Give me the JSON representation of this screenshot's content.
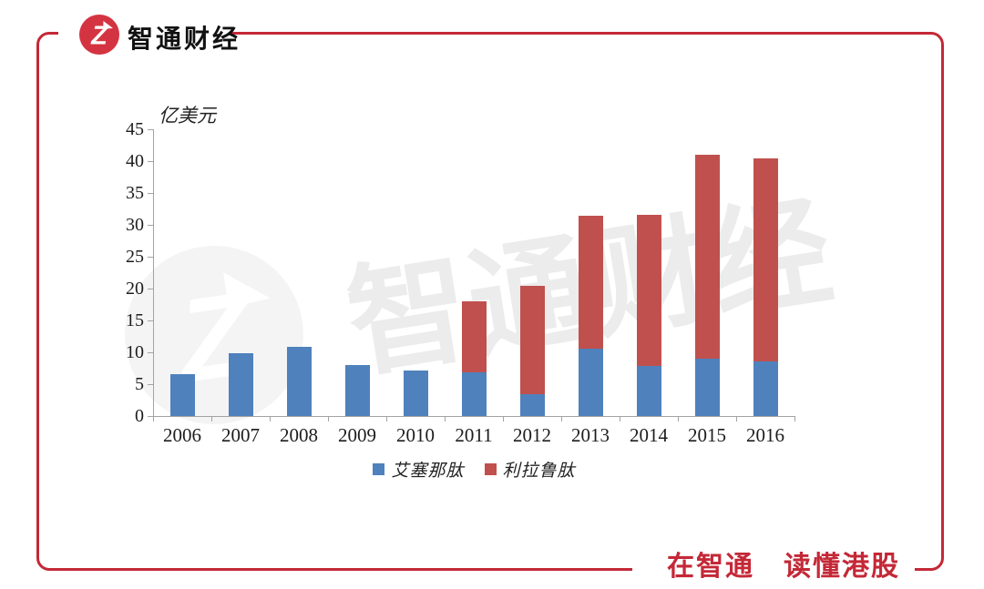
{
  "brand": {
    "name": "智通财经",
    "slogan": "在智通　读懂港股",
    "logo_letter": "Z",
    "logo_color": "#D43441",
    "frame_color": "#C42837"
  },
  "watermark": {
    "text": "智通财经"
  },
  "chart_data": {
    "type": "bar",
    "stacked": true,
    "title": "",
    "unit_label": "亿美元",
    "xlabel": "",
    "ylabel": "亿美元",
    "ylim": [
      0,
      45
    ],
    "ytick_step": 5,
    "grid": false,
    "legend_position": "bottom",
    "categories": [
      "2006",
      "2007",
      "2008",
      "2009",
      "2010",
      "2011",
      "2012",
      "2013",
      "2014",
      "2015",
      "2016"
    ],
    "series": [
      {
        "id": "exenatide",
        "name": "艾塞那肽",
        "color": "#4F81BD",
        "values": [
          6.5,
          9.8,
          10.8,
          8.0,
          7.1,
          6.9,
          3.4,
          10.6,
          7.9,
          9.0,
          8.5
        ]
      },
      {
        "id": "liraglutide",
        "name": "利拉鲁肽",
        "color": "#C0504D",
        "values": [
          0,
          0,
          0,
          0,
          0,
          11.1,
          17.0,
          20.8,
          23.7,
          32.0,
          31.9
        ]
      }
    ]
  }
}
